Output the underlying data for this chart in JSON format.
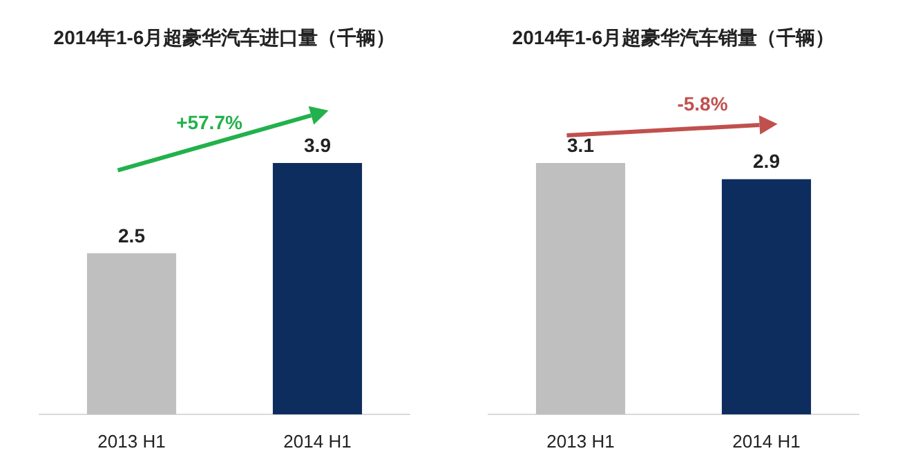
{
  "chart_data": [
    {
      "type": "bar",
      "title": "2014年1-6月超豪华汽车进口量（千辆）",
      "categories": [
        "2013 H1",
        "2014 H1"
      ],
      "values": [
        2.5,
        3.9
      ],
      "colors": [
        "#bfbfbf",
        "#0e2d5f"
      ],
      "data_labels": true,
      "annotations": [
        "+57.7%"
      ]
    },
    {
      "type": "bar",
      "title": "2014年1-6月超豪华汽车销量（千辆）",
      "categories": [
        "2013 H1",
        "2014 H1"
      ],
      "values": [
        3.1,
        2.9
      ],
      "colors": [
        "#bfbfbf",
        "#0e2d5f"
      ],
      "data_labels": true,
      "annotations": [
        "-5.8%"
      ]
    }
  ]
}
